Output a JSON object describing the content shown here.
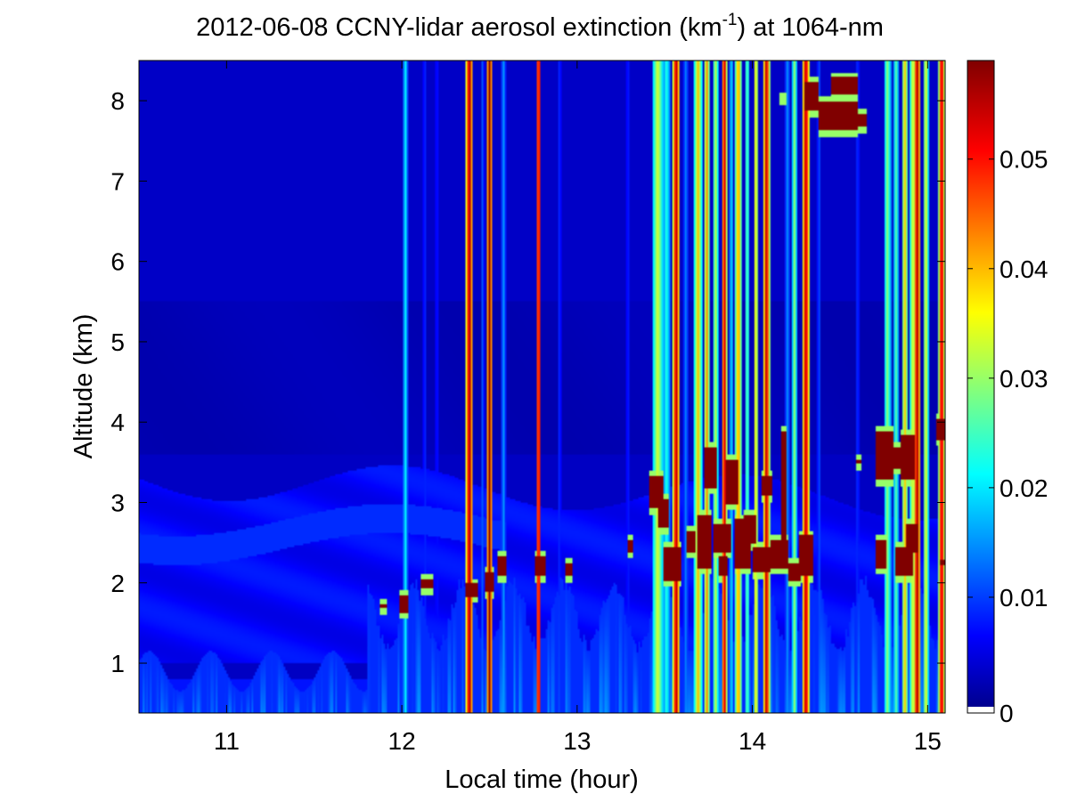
{
  "chart_data": {
    "type": "heatmap",
    "title": {
      "prefix": "2012-06-08 CCNY-lidar aerosol extinction (km",
      "superscript": "-1",
      "suffix": ") at 1064-nm"
    },
    "xlabel": "Local time (hour)",
    "ylabel": "Altitude (km)",
    "xlim": [
      10.5,
      15.1
    ],
    "ylim": [
      0.38,
      8.5
    ],
    "x_ticks": [
      11,
      12,
      13,
      14,
      15
    ],
    "y_ticks": [
      1,
      2,
      3,
      4,
      5,
      6,
      7,
      8
    ],
    "x_tick_labels": [
      "11",
      "12",
      "13",
      "14",
      "15"
    ],
    "y_tick_labels": [
      "1",
      "2",
      "3",
      "4",
      "5",
      "6",
      "7",
      "8"
    ],
    "colorbar": {
      "colormap": "jet",
      "range": [
        0,
        0.059
      ],
      "ticks": [
        0,
        0.01,
        0.02,
        0.03,
        0.04,
        0.05
      ],
      "tick_labels": [
        "0",
        "0.01",
        "0.02",
        "0.03",
        "0.04",
        "0.05"
      ],
      "under_color": "#ffffff"
    },
    "background_extinction": 0.003,
    "features": {
      "vertical_streaks": [
        {
          "t": 12.02,
          "width_h": 0.012,
          "value": 0.022,
          "top": 8.5
        },
        {
          "t": 12.13,
          "width_h": 0.01,
          "value": 0.01,
          "top": 8.5
        },
        {
          "t": 12.2,
          "width_h": 0.01,
          "value": 0.009,
          "top": 8.5
        },
        {
          "t": 12.385,
          "width_h": 0.022,
          "value": 0.059,
          "top": 8.5
        },
        {
          "t": 12.46,
          "width_h": 0.01,
          "value": 0.012,
          "top": 8.5
        },
        {
          "t": 12.5,
          "width_h": 0.018,
          "value": 0.059,
          "top": 8.5
        },
        {
          "t": 12.58,
          "width_h": 0.012,
          "value": 0.016,
          "top": 8.5
        },
        {
          "t": 12.78,
          "width_h": 0.014,
          "value": 0.059,
          "top": 8.5
        },
        {
          "t": 12.9,
          "width_h": 0.01,
          "value": 0.01,
          "top": 8.5
        },
        {
          "t": 13.29,
          "width_h": 0.012,
          "value": 0.009,
          "top": 8.5
        },
        {
          "t": 13.46,
          "width_h": 0.03,
          "value": 0.035,
          "top": 8.5
        },
        {
          "t": 13.51,
          "width_h": 0.02,
          "value": 0.024,
          "top": 8.5
        },
        {
          "t": 13.565,
          "width_h": 0.02,
          "value": 0.059,
          "top": 8.5
        },
        {
          "t": 13.62,
          "width_h": 0.014,
          "value": 0.014,
          "top": 8.5
        },
        {
          "t": 13.69,
          "width_h": 0.022,
          "value": 0.04,
          "top": 8.5
        },
        {
          "t": 13.74,
          "width_h": 0.016,
          "value": 0.044,
          "top": 8.5
        },
        {
          "t": 13.79,
          "width_h": 0.016,
          "value": 0.034,
          "top": 8.5
        },
        {
          "t": 13.84,
          "width_h": 0.014,
          "value": 0.059,
          "top": 8.5
        },
        {
          "t": 13.88,
          "width_h": 0.01,
          "value": 0.022,
          "top": 8.5
        },
        {
          "t": 13.92,
          "width_h": 0.018,
          "value": 0.045,
          "top": 8.5
        },
        {
          "t": 13.97,
          "width_h": 0.012,
          "value": 0.03,
          "top": 8.5
        },
        {
          "t": 14.02,
          "width_h": 0.014,
          "value": 0.04,
          "top": 8.5
        },
        {
          "t": 14.08,
          "width_h": 0.018,
          "value": 0.059,
          "top": 8.5
        },
        {
          "t": 14.2,
          "width_h": 0.014,
          "value": 0.015,
          "top": 8.5
        },
        {
          "t": 14.24,
          "width_h": 0.014,
          "value": 0.03,
          "top": 8.5
        },
        {
          "t": 14.305,
          "width_h": 0.02,
          "value": 0.059,
          "top": 8.5
        },
        {
          "t": 14.38,
          "width_h": 0.01,
          "value": 0.012,
          "top": 8.5
        },
        {
          "t": 14.6,
          "width_h": 0.012,
          "value": 0.01,
          "top": 8.5
        },
        {
          "t": 14.77,
          "width_h": 0.02,
          "value": 0.03,
          "top": 8.5
        },
        {
          "t": 14.82,
          "width_h": 0.016,
          "value": 0.026,
          "top": 8.5
        },
        {
          "t": 14.87,
          "width_h": 0.018,
          "value": 0.04,
          "top": 8.5
        },
        {
          "t": 14.91,
          "width_h": 0.012,
          "value": 0.035,
          "top": 8.5
        },
        {
          "t": 14.94,
          "width_h": 0.02,
          "value": 0.059,
          "top": 8.5
        },
        {
          "t": 14.99,
          "width_h": 0.014,
          "value": 0.038,
          "top": 8.5
        },
        {
          "t": 15.08,
          "width_h": 0.016,
          "value": 0.059,
          "top": 8.5
        }
      ],
      "cloud_blobs": [
        {
          "t0": 11.87,
          "t1": 11.91,
          "z0": 1.6,
          "z1": 1.8
        },
        {
          "t0": 11.99,
          "t1": 12.04,
          "z0": 1.55,
          "z1": 1.9
        },
        {
          "t0": 12.11,
          "t1": 12.18,
          "z0": 1.85,
          "z1": 2.1
        },
        {
          "t0": 12.36,
          "t1": 12.43,
          "z0": 1.75,
          "z1": 2.05
        },
        {
          "t0": 12.47,
          "t1": 12.53,
          "z0": 1.8,
          "z1": 2.2
        },
        {
          "t0": 12.55,
          "t1": 12.6,
          "z0": 2.0,
          "z1": 2.4
        },
        {
          "t0": 12.76,
          "t1": 12.82,
          "z0": 2.0,
          "z1": 2.4
        },
        {
          "t0": 12.93,
          "t1": 12.97,
          "z0": 2.0,
          "z1": 2.3
        },
        {
          "t0": 13.29,
          "t1": 13.32,
          "z0": 2.3,
          "z1": 2.6
        },
        {
          "t0": 13.41,
          "t1": 13.49,
          "z0": 2.85,
          "z1": 3.4
        },
        {
          "t0": 13.46,
          "t1": 13.52,
          "z0": 2.6,
          "z1": 3.1
        },
        {
          "t0": 13.49,
          "t1": 13.59,
          "z0": 1.95,
          "z1": 2.5
        },
        {
          "t0": 13.62,
          "t1": 13.68,
          "z0": 2.3,
          "z1": 2.7
        },
        {
          "t0": 13.69,
          "t1": 13.77,
          "z0": 2.1,
          "z1": 2.9
        },
        {
          "t0": 13.73,
          "t1": 13.8,
          "z0": 3.1,
          "z1": 3.75
        },
        {
          "t0": 13.78,
          "t1": 13.88,
          "z0": 2.3,
          "z1": 2.8
        },
        {
          "t0": 13.81,
          "t1": 13.86,
          "z0": 2.0,
          "z1": 2.4
        },
        {
          "t0": 13.85,
          "t1": 13.92,
          "z0": 2.9,
          "z1": 3.6
        },
        {
          "t0": 13.9,
          "t1": 13.99,
          "z0": 2.1,
          "z1": 2.85
        },
        {
          "t0": 13.95,
          "t1": 14.02,
          "z0": 2.4,
          "z1": 2.9
        },
        {
          "t0": 14.0,
          "t1": 14.1,
          "z0": 2.05,
          "z1": 2.5
        },
        {
          "t0": 14.05,
          "t1": 14.11,
          "z0": 3.0,
          "z1": 3.4
        },
        {
          "t0": 14.1,
          "t1": 14.2,
          "z0": 2.1,
          "z1": 2.6
        },
        {
          "t0": 14.16,
          "t1": 14.19,
          "z0": 2.1,
          "z1": 3.95
        },
        {
          "t0": 14.2,
          "t1": 14.28,
          "z0": 1.95,
          "z1": 2.3
        },
        {
          "t0": 14.27,
          "t1": 14.35,
          "z0": 2.0,
          "z1": 2.65
        },
        {
          "t0": 14.3,
          "t1": 14.38,
          "z0": 7.8,
          "z1": 8.3
        },
        {
          "t0": 14.15,
          "t1": 14.19,
          "z0": 7.95,
          "z1": 8.1
        },
        {
          "t0": 14.38,
          "t1": 14.6,
          "z0": 7.55,
          "z1": 8.05
        },
        {
          "t0": 14.45,
          "t1": 14.6,
          "z0": 8.0,
          "z1": 8.35
        },
        {
          "t0": 14.55,
          "t1": 14.65,
          "z0": 7.6,
          "z1": 7.9
        },
        {
          "t0": 14.59,
          "t1": 14.62,
          "z0": 3.4,
          "z1": 3.6
        },
        {
          "t0": 14.7,
          "t1": 14.76,
          "z0": 2.1,
          "z1": 2.6
        },
        {
          "t0": 14.7,
          "t1": 14.8,
          "z0": 3.2,
          "z1": 3.95
        },
        {
          "t0": 14.78,
          "t1": 14.86,
          "z0": 3.35,
          "z1": 3.75
        },
        {
          "t0": 14.82,
          "t1": 14.92,
          "z0": 2.0,
          "z1": 2.5
        },
        {
          "t0": 14.85,
          "t1": 14.93,
          "z0": 3.2,
          "z1": 3.9
        },
        {
          "t0": 14.88,
          "t1": 14.95,
          "z0": 2.3,
          "z1": 2.8
        },
        {
          "t0": 15.05,
          "t1": 15.1,
          "z0": 3.7,
          "z1": 4.1
        },
        {
          "t0": 15.07,
          "t1": 15.1,
          "z0": 2.15,
          "z1": 2.35
        }
      ]
    }
  }
}
